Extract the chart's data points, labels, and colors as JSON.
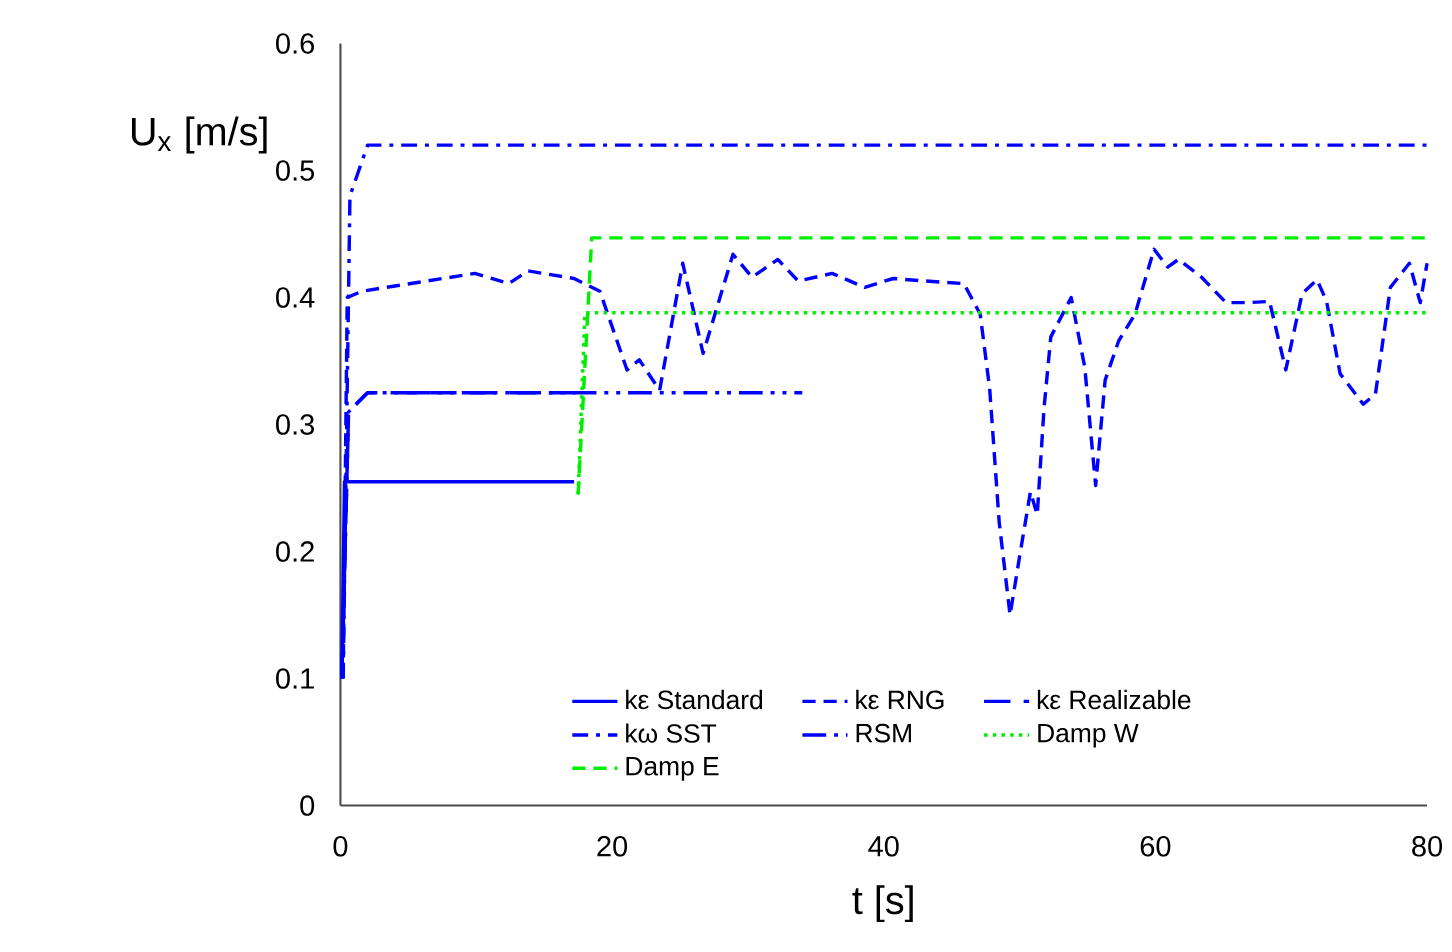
{
  "chart_data": {
    "type": "line",
    "xlabel": "t [s]",
    "ylabel": "U$_{x}$ [m/s]",
    "xlim": [
      0,
      80
    ],
    "xticks": [
      0,
      20,
      40,
      60,
      80
    ],
    "ylim": [
      0,
      0.6
    ],
    "yticks": [
      0,
      0.1,
      0.2,
      0.3,
      0.4,
      0.5,
      0.6
    ],
    "grid": false,
    "legend": "bottom",
    "marker": "none",
    "series": [
      {
        "name": "kε Standard",
        "color": "#0000ff",
        "line_style": "solid",
        "x": [
          0.1,
          0.3,
          17.2
        ],
        "values": [
          0.1,
          0.255,
          0.255
        ]
      },
      {
        "name": "kε RNG",
        "color": "#0000ff",
        "line_style": "dashed",
        "x": [
          0.2,
          0.5,
          1.6,
          9.9,
          12.4,
          13.8,
          17.2,
          19.1,
          21.1,
          22.0,
          23.5,
          25.2,
          26.7,
          28.9,
          30.3,
          32.2,
          33.7,
          36.2,
          38.6,
          40.7,
          43.1,
          45.9,
          47.1,
          47.8,
          48.5,
          49.3,
          50.0,
          50.8,
          51.3,
          51.8,
          52.3,
          53.8,
          54.8,
          55.6,
          56.3,
          57.3,
          58.5,
          59.9,
          60.9,
          61.7,
          63.4,
          65.2,
          66.9,
          68.4,
          69.6,
          70.8,
          71.9,
          72.6,
          73.6,
          75.3,
          76.2,
          77.3,
          78.7,
          79.5,
          80
        ],
        "values": [
          0.1,
          0.4,
          0.405,
          0.419,
          0.411,
          0.421,
          0.415,
          0.405,
          0.343,
          0.351,
          0.327,
          0.427,
          0.356,
          0.434,
          0.416,
          0.43,
          0.413,
          0.419,
          0.408,
          0.415,
          0.413,
          0.411,
          0.387,
          0.328,
          0.223,
          0.15,
          0.196,
          0.247,
          0.229,
          0.313,
          0.369,
          0.4,
          0.345,
          0.252,
          0.335,
          0.366,
          0.387,
          0.438,
          0.424,
          0.43,
          0.416,
          0.396,
          0.396,
          0.397,
          0.343,
          0.403,
          0.414,
          0.397,
          0.34,
          0.316,
          0.324,
          0.408,
          0.427,
          0.396,
          0.427
        ]
      },
      {
        "name": "kε Realizable",
        "color": "#0000ff",
        "line_style": "long dashed",
        "x": [
          0.1,
          0.6,
          2,
          17.5
        ],
        "values": [
          0.1,
          0.31,
          0.325,
          0.325
        ]
      },
      {
        "name": "kω SST",
        "color": "#0000ff",
        "line_style": "dash dot",
        "x": [
          0.2,
          0.7,
          2,
          80
        ],
        "values": [
          0.1,
          0.48,
          0.52,
          0.52
        ]
      },
      {
        "name": "RSM",
        "color": "#0000ff",
        "line_style": "dash dot dot",
        "x": [
          0.1,
          0.6,
          2,
          34
        ],
        "values": [
          0.1,
          0.31,
          0.325,
          0.325
        ]
      },
      {
        "name": "Damp W",
        "color": "#00ee00",
        "line_style": "dotted",
        "x": [
          17.5,
          18,
          80
        ],
        "values": [
          0.245,
          0.388,
          0.388
        ]
      },
      {
        "name": "Damp E",
        "color": "#00ee00",
        "line_style": "dashed",
        "x": [
          17.5,
          18.5,
          80
        ],
        "values": [
          0.245,
          0.447,
          0.447
        ]
      }
    ]
  }
}
